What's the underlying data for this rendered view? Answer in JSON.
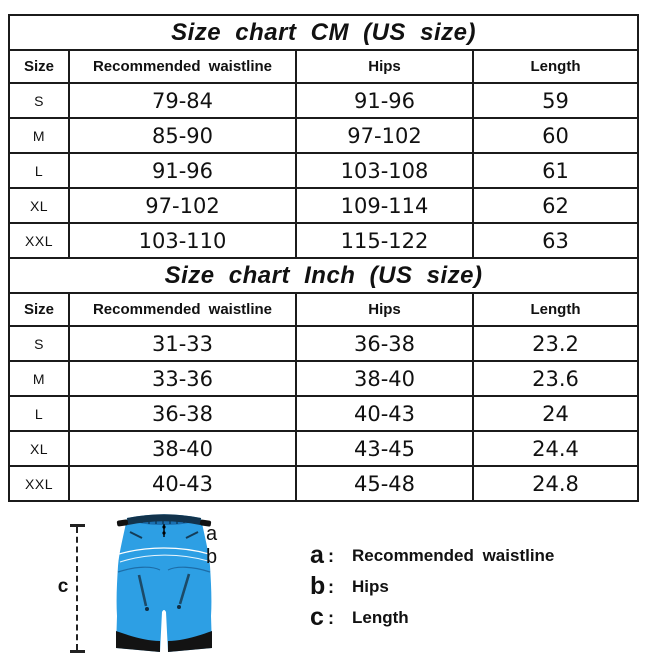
{
  "colors": {
    "table_border": "#1b1b1b",
    "line_black": "#222222",
    "shorts_blue": "#2d9fe4",
    "shorts_blue_dark": "#1d6da8",
    "shorts_navy": "#12334c",
    "mesh_blue": "#1a6fb0",
    "hem_black": "#131313"
  },
  "chart_data": [
    {
      "type": "table",
      "title": "Size chart CM (US size)",
      "columns": [
        "Size",
        "Recommended waistline",
        "Hips",
        "Length"
      ],
      "rows": [
        [
          "S",
          "79-84",
          "91-96",
          "59"
        ],
        [
          "M",
          "85-90",
          "97-102",
          "60"
        ],
        [
          "L",
          "91-96",
          "103-108",
          "61"
        ],
        [
          "XL",
          "97-102",
          "109-114",
          "62"
        ],
        [
          "XXL",
          "103-110",
          "115-122",
          "63"
        ]
      ]
    },
    {
      "type": "table",
      "title": "Size chart Inch (US size)",
      "columns": [
        "Size",
        "Recommended waistline",
        "Hips",
        "Length"
      ],
      "rows": [
        [
          "S",
          "31-33",
          "36-38",
          "23.2"
        ],
        [
          "M",
          "33-36",
          "38-40",
          "23.6"
        ],
        [
          "L",
          "36-38",
          "40-43",
          "24"
        ],
        [
          "XL",
          "38-40",
          "43-45",
          "24.4"
        ],
        [
          "XXL",
          "40-43",
          "45-48",
          "24.8"
        ]
      ]
    }
  ],
  "diagram": {
    "label_a": "a",
    "label_b": "b",
    "label_c": "c",
    "separator": ":",
    "legend": [
      {
        "key": "a",
        "label": "Recommended waistline"
      },
      {
        "key": "b",
        "label": "Hips"
      },
      {
        "key": "c",
        "label": "Length"
      }
    ]
  }
}
